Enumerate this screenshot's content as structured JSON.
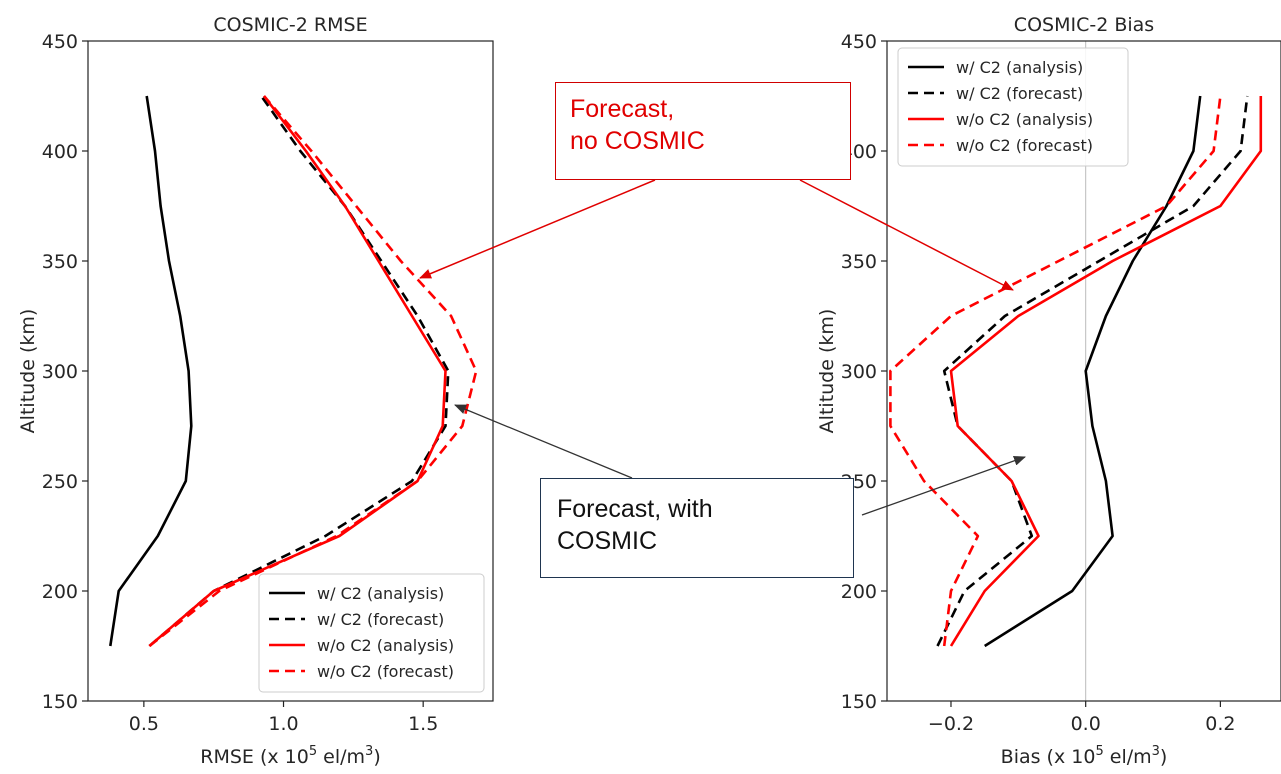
{
  "chart_data": [
    {
      "type": "line",
      "title": "COSMIC-2 RMSE",
      "xlabel": "RMSE (x 10",
      "xlabel_exp": "5",
      "xlabel_mid": " el/m",
      "xlabel_exp2": "3",
      "xlabel_end": ")",
      "ylabel": "Altitude (km)",
      "xlim": [
        0.3,
        1.75
      ],
      "ylim": [
        150,
        450
      ],
      "xticks": [
        0.5,
        1.0,
        1.5
      ],
      "xtick_labels": [
        "0.5",
        "1.0",
        "1.5"
      ],
      "yticks": [
        150,
        200,
        250,
        300,
        350,
        400,
        450
      ],
      "ytick_labels": [
        "150",
        "200",
        "250",
        "300",
        "350",
        "400",
        "450"
      ],
      "legend_position": "lower-right",
      "series": [
        {
          "name": "w/ C2 (analysis)",
          "color": "#000000",
          "dash": "solid",
          "points": [
            [
              0.38,
              175
            ],
            [
              0.41,
              200
            ],
            [
              0.55,
              225
            ],
            [
              0.65,
              250
            ],
            [
              0.67,
              275
            ],
            [
              0.66,
              300
            ],
            [
              0.63,
              325
            ],
            [
              0.59,
              350
            ],
            [
              0.56,
              375
            ],
            [
              0.54,
              400
            ],
            [
              0.51,
              425
            ]
          ]
        },
        {
          "name": "w/ C2 (forecast)",
          "color": "#000000",
          "dash": "dashed",
          "points": [
            [
              0.52,
              175
            ],
            [
              0.75,
              200
            ],
            [
              1.15,
              225
            ],
            [
              1.46,
              250
            ],
            [
              1.58,
              275
            ],
            [
              1.59,
              300
            ],
            [
              1.48,
              325
            ],
            [
              1.35,
              350
            ],
            [
              1.22,
              375
            ],
            [
              1.06,
              400
            ],
            [
              0.92,
              425
            ]
          ]
        },
        {
          "name": "w/o C2 (analysis)",
          "color": "#ff0000",
          "dash": "solid",
          "points": [
            [
              0.52,
              175
            ],
            [
              0.75,
              200
            ],
            [
              1.2,
              225
            ],
            [
              1.48,
              250
            ],
            [
              1.57,
              275
            ],
            [
              1.58,
              300
            ],
            [
              1.46,
              325
            ],
            [
              1.34,
              350
            ],
            [
              1.22,
              375
            ],
            [
              1.08,
              400
            ],
            [
              0.93,
              425
            ]
          ]
        },
        {
          "name": "w/o C2 (forecast)",
          "color": "#ff0000",
          "dash": "dashed",
          "points": [
            [
              0.52,
              175
            ],
            [
              0.77,
              200
            ],
            [
              1.19,
              225
            ],
            [
              1.48,
              250
            ],
            [
              1.64,
              275
            ],
            [
              1.69,
              300
            ],
            [
              1.6,
              325
            ],
            [
              1.42,
              350
            ],
            [
              1.26,
              375
            ],
            [
              1.1,
              400
            ],
            [
              0.93,
              425
            ]
          ]
        }
      ]
    },
    {
      "type": "line",
      "title": "COSMIC-2 Bias",
      "xlabel": "Bias (x 10",
      "xlabel_exp": "5",
      "xlabel_mid": " el/m",
      "xlabel_exp2": "3",
      "xlabel_end": ")",
      "ylabel": "Altitude (km)",
      "xlim": [
        -0.295,
        0.29
      ],
      "ylim": [
        150,
        450
      ],
      "xticks": [
        -0.2,
        0.0,
        0.2
      ],
      "xtick_labels": [
        "−0.2",
        "0.0",
        "0.2"
      ],
      "yticks": [
        150,
        200,
        250,
        300,
        350,
        400,
        450
      ],
      "ytick_labels": [
        "150",
        "200",
        "250",
        "300",
        "350",
        "400",
        "450"
      ],
      "zero_line": true,
      "legend_position": "upper-left",
      "series": [
        {
          "name": "w/ C2 (analysis)",
          "color": "#000000",
          "dash": "solid",
          "points": [
            [
              -0.15,
              175
            ],
            [
              -0.02,
              200
            ],
            [
              0.04,
              225
            ],
            [
              0.03,
              250
            ],
            [
              0.01,
              275
            ],
            [
              0.0,
              300
            ],
            [
              0.03,
              325
            ],
            [
              0.07,
              350
            ],
            [
              0.12,
              375
            ],
            [
              0.16,
              400
            ],
            [
              0.17,
              425
            ]
          ]
        },
        {
          "name": "w/ C2 (forecast)",
          "color": "#000000",
          "dash": "dashed",
          "points": [
            [
              -0.22,
              175
            ],
            [
              -0.18,
              200
            ],
            [
              -0.08,
              225
            ],
            [
              -0.11,
              250
            ],
            [
              -0.19,
              275
            ],
            [
              -0.21,
              300
            ],
            [
              -0.12,
              325
            ],
            [
              0.02,
              350
            ],
            [
              0.16,
              375
            ],
            [
              0.23,
              400
            ],
            [
              0.24,
              425
            ]
          ]
        },
        {
          "name": "w/o C2 (analysis)",
          "color": "#ff0000",
          "dash": "solid",
          "points": [
            [
              -0.2,
              175
            ],
            [
              -0.15,
              200
            ],
            [
              -0.07,
              225
            ],
            [
              -0.11,
              250
            ],
            [
              -0.19,
              275
            ],
            [
              -0.2,
              300
            ],
            [
              -0.1,
              325
            ],
            [
              0.04,
              350
            ],
            [
              0.2,
              375
            ],
            [
              0.26,
              400
            ],
            [
              0.26,
              425
            ]
          ]
        },
        {
          "name": "w/o C2 (forecast)",
          "color": "#ff0000",
          "dash": "dashed",
          "points": [
            [
              -0.21,
              175
            ],
            [
              -0.2,
              200
            ],
            [
              -0.16,
              225
            ],
            [
              -0.24,
              250
            ],
            [
              -0.29,
              275
            ],
            [
              -0.29,
              300
            ],
            [
              -0.2,
              325
            ],
            [
              -0.04,
              350
            ],
            [
              0.12,
              375
            ],
            [
              0.19,
              400
            ],
            [
              0.2,
              425
            ]
          ]
        }
      ]
    }
  ],
  "annotations": {
    "forecast_no_cosmic": {
      "line1": "Forecast,",
      "line2": "no COSMIC",
      "color": "#e00000"
    },
    "forecast_with_cosmic": {
      "line1": "Forecast, with",
      "line2": "COSMIC",
      "color": "#111111"
    }
  }
}
